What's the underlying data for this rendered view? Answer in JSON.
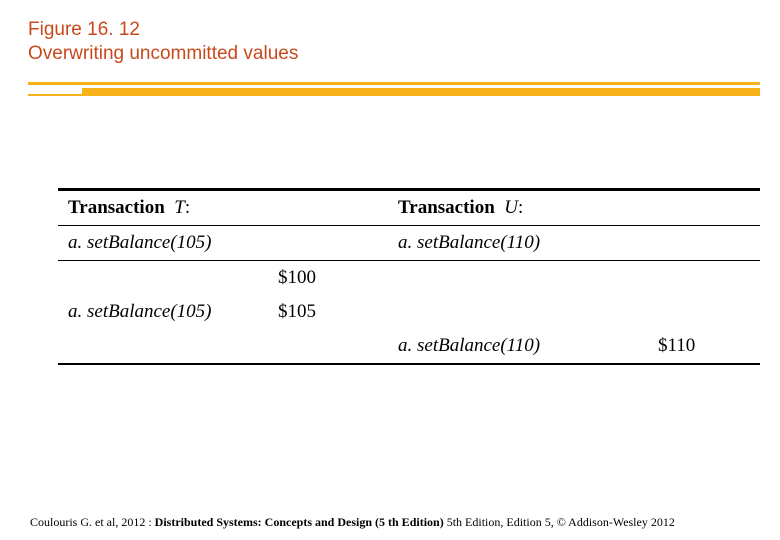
{
  "title": {
    "fig_num": "Figure 16. 12",
    "caption": "Overwriting uncommitted values"
  },
  "colors": {
    "heading": "#c84a1c",
    "rule": "#f7b21a",
    "text": "#000000",
    "background": "#ffffff"
  },
  "typography": {
    "heading_family": "Arial, Helvetica, sans-serif",
    "heading_size_pt": 14,
    "body_family": "Times New Roman, Georgia, serif",
    "body_size_pt": 14,
    "citation_size_pt": 9
  },
  "table": {
    "type": "table",
    "columns": [
      "op_t",
      "val_t",
      "op_u",
      "val_u"
    ],
    "header": {
      "t_label": "Transaction",
      "t_var": "T",
      "u_label": "Transaction",
      "u_var": "U"
    },
    "subheader": {
      "t": "a. setBalance(105)",
      "u": "a. setBalance(110)"
    },
    "rows": [
      {
        "op_t": "",
        "val_t": "$100",
        "op_u": "",
        "val_u": ""
      },
      {
        "op_t": "a. setBalance(105)",
        "val_t": "$105",
        "op_u": "",
        "val_u": ""
      },
      {
        "op_t": "",
        "val_t": "",
        "op_u": "a. setBalance(110)",
        "val_u": "$110"
      }
    ]
  },
  "citation": {
    "prefix": "Coulouris G. et al, 2012 : ",
    "bold": "Distributed Systems: Concepts and Design (5 th Edition)",
    "suffix": " 5th Edition, Edition 5, © Addison-Wesley 2012"
  }
}
